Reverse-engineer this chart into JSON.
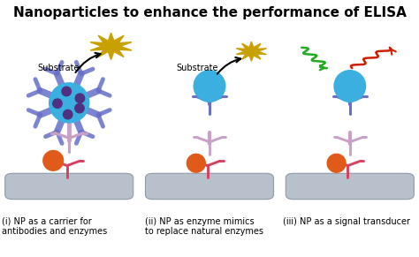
{
  "title": "Nanoparticles to enhance the performance of ELISA",
  "title_fontsize": 11,
  "title_fontweight": "bold",
  "bg_color": "#ffffff",
  "fig_width": 4.74,
  "fig_height": 2.91,
  "captions": [
    "(i) NP as a carrier for\nantibodies and enzymes",
    "(ii) NP as enzyme mimics\nto replace natural enzymes",
    "(iii) NP as a signal transducer"
  ],
  "substrate_label": "Substrate",
  "colors": {
    "blue_np": "#3AAFE0",
    "gold_star": "#C8A000",
    "orange_ball": "#E05A1A",
    "purple_antibody": "#6870C8",
    "pink_stem": "#C8A0C8",
    "red_antibody": "#D84060",
    "gray_plate": "#B8C0CC",
    "gray_plate_edge": "#909AAA",
    "green_wave": "#22AA22",
    "red_wave": "#CC2000",
    "dark_purple": "#503080",
    "spike_color": "#6870C8"
  }
}
